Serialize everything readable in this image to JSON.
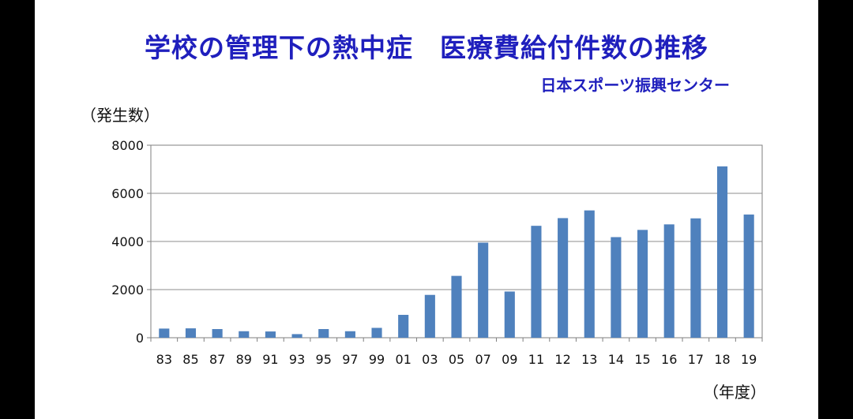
{
  "slide": {
    "title": "学校の管理下の熱中症　医療費給付件数の推移",
    "source": "日本スポーツ振興センター"
  },
  "chart_data": {
    "type": "bar",
    "ylabel": "（発生数）",
    "xlabel": "（年度）",
    "ylim": [
      0,
      8000
    ],
    "yticks": [
      0,
      2000,
      4000,
      6000,
      8000
    ],
    "grid": true,
    "bar_color": "#4f81bd",
    "categories": [
      "83",
      "85",
      "87",
      "89",
      "91",
      "93",
      "95",
      "97",
      "99",
      "01",
      "03",
      "05",
      "07",
      "09",
      "11",
      "12",
      "13",
      "14",
      "15",
      "16",
      "17",
      "18",
      "19"
    ],
    "values": [
      380,
      390,
      360,
      270,
      260,
      150,
      360,
      270,
      410,
      950,
      1780,
      2570,
      3950,
      1920,
      4650,
      4970,
      5290,
      4180,
      4480,
      4710,
      4960,
      7120,
      5120
    ]
  }
}
